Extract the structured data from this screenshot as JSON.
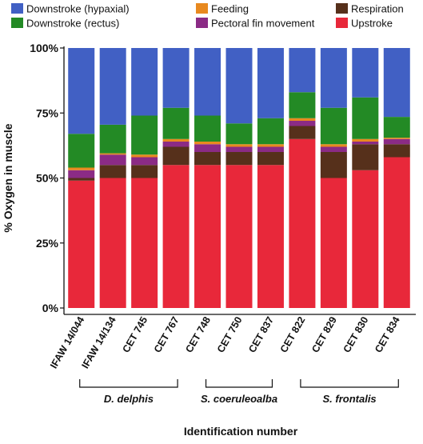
{
  "chart_data": {
    "type": "bar",
    "stacked": true,
    "ylabel": "% Oxygen in muscle",
    "xlabel": "Identification number",
    "ylim": [
      0,
      100
    ],
    "yticks": [
      {
        "value": 0,
        "label": "0%"
      },
      {
        "value": 25,
        "label": "25%"
      },
      {
        "value": 50,
        "label": "50%"
      },
      {
        "value": 75,
        "label": "75%"
      },
      {
        "value": 100,
        "label": "100%"
      }
    ],
    "legend_position": "top",
    "categories": [
      "IFAW 14/044",
      "IFAW 14/134",
      "CET 745",
      "CET 767",
      "CET 748",
      "CET 750",
      "CET 837",
      "CET 822",
      "CET 829",
      "CET 830",
      "CET 834"
    ],
    "series": [
      {
        "name": "Upstroke",
        "color": "#e8283a",
        "values": [
          49,
          50,
          50,
          55,
          55,
          55,
          55,
          65,
          50,
          53,
          58
        ]
      },
      {
        "name": "Respiration",
        "color": "#56301b",
        "values": [
          1,
          5,
          5,
          7,
          5,
          5,
          5,
          5,
          10,
          10,
          5
        ]
      },
      {
        "name": "Pectoral fin movement",
        "color": "#8b2b85",
        "values": [
          3,
          4,
          3,
          2,
          3,
          2,
          2,
          2,
          2,
          1,
          2
        ]
      },
      {
        "name": "Feeding",
        "color": "#e8891f",
        "values": [
          1,
          0.5,
          1,
          1,
          1,
          1,
          1,
          1,
          1,
          1,
          0.5
        ]
      },
      {
        "name": "Downstroke (rectus)",
        "color": "#238a25",
        "values": [
          13,
          11,
          15,
          12,
          10,
          8,
          10,
          10,
          14,
          16,
          8
        ]
      },
      {
        "name": "Downstroke (hypaxial)",
        "color": "#4160c4",
        "values": [
          33,
          29.5,
          26,
          23,
          26,
          29,
          27,
          17,
          23,
          19,
          26.5
        ]
      }
    ],
    "legend_order": [
      "Downstroke (hypaxial)",
      "Feeding",
      "Respiration",
      "Downstroke (rectus)",
      "Pectoral fin movement",
      "Upstroke"
    ],
    "groups": [
      {
        "label": "D. delphis",
        "from": 0,
        "to": 3
      },
      {
        "label": "S. coeruleoalba",
        "from": 4,
        "to": 6
      },
      {
        "label": "S. frontalis",
        "from": 7,
        "to": 10
      }
    ]
  }
}
